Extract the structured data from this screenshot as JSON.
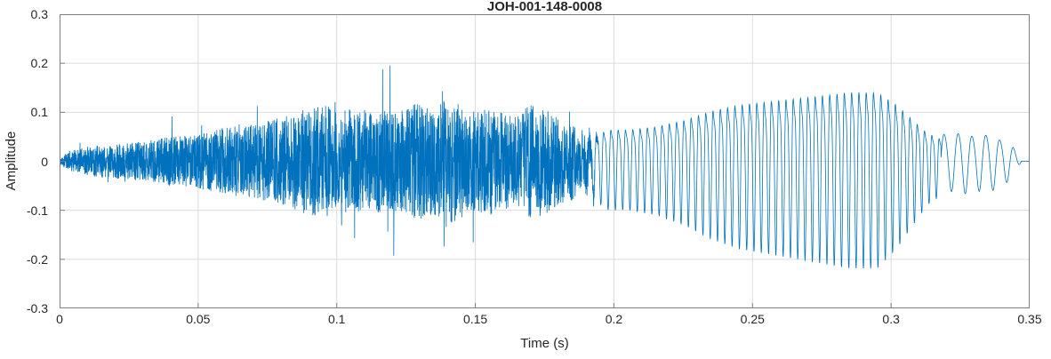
{
  "chart_data": {
    "type": "line",
    "title": "JOH-001-148-0008",
    "xlabel": "Time (s)",
    "ylabel": "Amplitude",
    "xlim": [
      0,
      0.35
    ],
    "ylim": [
      -0.3,
      0.3
    ],
    "xticks": [
      0,
      0.05,
      0.1,
      0.15,
      0.2,
      0.25,
      0.3,
      0.35
    ],
    "xtick_labels": [
      "0",
      "0.05",
      "0.1",
      "0.15",
      "0.2",
      "0.25",
      "0.3",
      "0.35"
    ],
    "yticks": [
      -0.3,
      -0.2,
      -0.1,
      0,
      0.1,
      0.2,
      0.3
    ],
    "ytick_labels": [
      "-0.3",
      "-0.2",
      "-0.1",
      "0",
      "0.1",
      "0.2",
      "0.3"
    ],
    "grid": true,
    "legend": "none",
    "line_color": "#0072BD",
    "grid_color": "#dcdcdc",
    "axis_color": "#7f7f7f",
    "series": [
      {
        "name": "waveform",
        "description": "Speech audio waveform: dense fricative/noise burst from 0 to ~0.19 s peaking near 0.26 amplitude around 0.14 s, quasi-periodic voiced segment ~0.19-0.315 s growing to ~0.22 amplitude near 0.29 s, then a small decaying oscillatory tail to ~0.345 s",
        "segments": [
          {
            "type": "noise",
            "t_start": 0,
            "t_end": 0.195,
            "spike_prob": 0.03,
            "spike_max": 2.3,
            "envelope_t": [
              0,
              0.003,
              0.01,
              0.02,
              0.03,
              0.04,
              0.05,
              0.06,
              0.07,
              0.08,
              0.085,
              0.09,
              0.095,
              0.1,
              0.105,
              0.11,
              0.115,
              0.12,
              0.125,
              0.13,
              0.135,
              0.14,
              0.145,
              0.15,
              0.155,
              0.16,
              0.165,
              0.17,
              0.175,
              0.18,
              0.185,
              0.19,
              0.195
            ],
            "envelope_a": [
              0.004,
              0.02,
              0.03,
              0.035,
              0.04,
              0.05,
              0.055,
              0.07,
              0.075,
              0.09,
              0.1,
              0.11,
              0.12,
              0.1,
              0.11,
              0.1,
              0.105,
              0.1,
              0.11,
              0.12,
              0.11,
              0.13,
              0.12,
              0.1,
              0.11,
              0.1,
              0.09,
              0.12,
              0.11,
              0.09,
              0.08,
              0.05,
              0.0
            ]
          },
          {
            "type": "tone",
            "t_start": 0.188,
            "t_end": 0.318,
            "freq_hz": 380,
            "harmonic2": 0.3,
            "envelope_t": [
              0.188,
              0.193,
              0.198,
              0.205,
              0.215,
              0.225,
              0.235,
              0.245,
              0.255,
              0.265,
              0.275,
              0.285,
              0.295,
              0.302,
              0.308,
              0.313,
              0.318
            ],
            "envelope_a": [
              0.0,
              0.08,
              0.1,
              0.1,
              0.11,
              0.13,
              0.16,
              0.18,
              0.19,
              0.2,
              0.21,
              0.22,
              0.22,
              0.18,
              0.13,
              0.09,
              0.07
            ]
          },
          {
            "type": "tone",
            "t_start": 0.318,
            "t_end": 0.347,
            "freq_hz": 200,
            "harmonic2": 0.1,
            "envelope_t": [
              0.318,
              0.321,
              0.325,
              0.33,
              0.335,
              0.34,
              0.344,
              0.347
            ],
            "envelope_a": [
              0.07,
              0.06,
              0.07,
              0.06,
              0.065,
              0.05,
              0.035,
              0.0
            ]
          }
        ]
      }
    ]
  }
}
